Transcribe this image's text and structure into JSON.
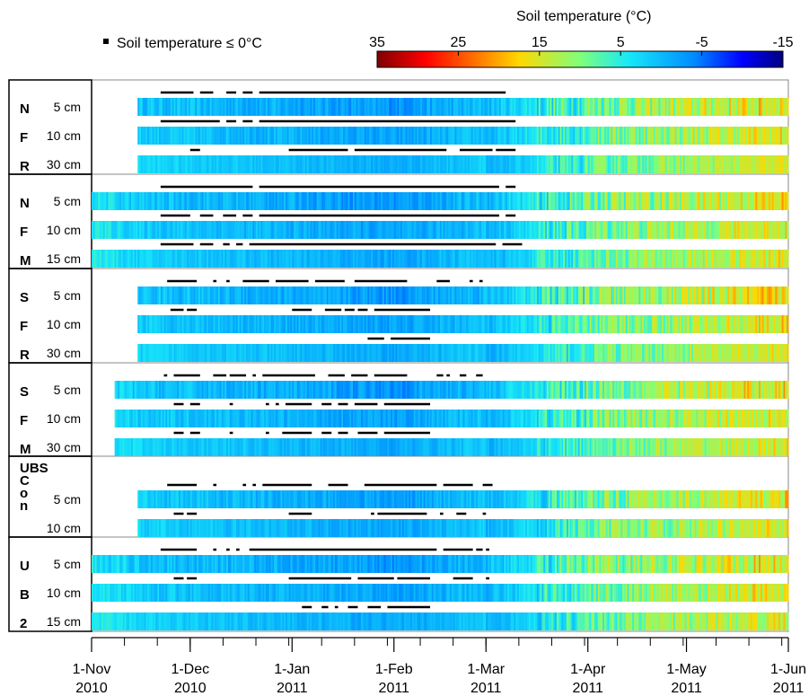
{
  "chart_data": {
    "type": "heatmap",
    "legend": {
      "marker_label": "Soil temperature ≤ 0°C",
      "colorbar_title": "Soil temperature (°C)",
      "colorbar_ticks": [
        "35",
        "25",
        "15",
        "5",
        "-5",
        "-15"
      ],
      "colorbar_range": [
        35,
        -15
      ]
    },
    "x_axis": {
      "ticks": [
        {
          "line1": "1-Nov",
          "line2": "2010",
          "day": 0
        },
        {
          "line1": "1-Dec",
          "line2": "2010",
          "day": 30
        },
        {
          "line1": "1-Jan",
          "line2": "2011",
          "day": 61
        },
        {
          "line1": "1-Feb",
          "line2": "2011",
          "day": 92
        },
        {
          "line1": "1-Mar",
          "line2": "2011",
          "day": 120
        },
        {
          "line1": "1-Apr",
          "line2": "2011",
          "day": 151
        },
        {
          "line1": "1-May",
          "line2": "2011",
          "day": 181
        },
        {
          "line1": "1-Jun",
          "line2": "2011",
          "day": 212
        }
      ],
      "range_days": [
        0,
        212
      ]
    },
    "panels": [
      {
        "name_lines": [
          "N",
          "F",
          "R"
        ],
        "rows": [
          {
            "depth": "5 cm",
            "start": "2010-11-15",
            "tone": 0.0,
            "frozen": [
              [
                "2010-11-22",
                "2010-12-02"
              ],
              [
                "2010-12-04",
                "2010-12-08"
              ],
              [
                "2010-12-12",
                "2010-12-15"
              ],
              [
                "2010-12-17",
                "2010-12-20"
              ],
              [
                "2010-12-22",
                "2011-03-07"
              ]
            ]
          },
          {
            "depth": "10 cm",
            "start": "2010-11-15",
            "tone": 0.3,
            "frozen": [
              [
                "2010-11-22",
                "2010-12-10"
              ],
              [
                "2010-12-12",
                "2010-12-15"
              ],
              [
                "2010-12-17",
                "2010-12-20"
              ],
              [
                "2010-12-22",
                "2011-03-10"
              ]
            ]
          },
          {
            "depth": "30 cm",
            "start": "2010-11-15",
            "tone": 0.8,
            "frozen": [
              [
                "2010-12-01",
                "2010-12-04"
              ],
              [
                "2010-12-31",
                "2011-01-18"
              ],
              [
                "2011-01-20",
                "2011-02-17"
              ],
              [
                "2011-02-21",
                "2011-03-03"
              ],
              [
                "2011-03-04",
                "2011-03-10"
              ]
            ]
          }
        ]
      },
      {
        "name_lines": [
          "N",
          "F",
          "M"
        ],
        "rows": [
          {
            "depth": "5 cm",
            "start": "2010-11-01",
            "tone": 0.0,
            "frozen": [
              [
                "2010-11-22",
                "2010-12-20"
              ],
              [
                "2010-12-22",
                "2011-03-05"
              ],
              [
                "2011-03-07",
                "2011-03-10"
              ]
            ]
          },
          {
            "depth": "10 cm",
            "start": "2010-11-01",
            "tone": 0.3,
            "frozen": [
              [
                "2010-11-22",
                "2010-12-01"
              ],
              [
                "2010-12-04",
                "2010-12-08"
              ],
              [
                "2010-12-11",
                "2010-12-15"
              ],
              [
                "2010-12-17",
                "2010-12-20"
              ],
              [
                "2010-12-22",
                "2011-03-05"
              ],
              [
                "2011-03-07",
                "2011-03-10"
              ]
            ]
          },
          {
            "depth": "15 cm",
            "start": "2010-11-01",
            "tone": 0.5,
            "frozen": [
              [
                "2010-11-22",
                "2010-12-02"
              ],
              [
                "2010-12-04",
                "2010-12-08"
              ],
              [
                "2010-12-11",
                "2010-12-13"
              ],
              [
                "2010-12-15",
                "2010-12-17"
              ],
              [
                "2010-12-19",
                "2011-03-04"
              ],
              [
                "2011-03-06",
                "2011-03-12"
              ]
            ]
          }
        ]
      },
      {
        "name_lines": [
          "S",
          "F",
          "R"
        ],
        "rows": [
          {
            "depth": "5 cm",
            "start": "2010-11-15",
            "tone": 0.0,
            "frozen": [
              [
                "2010-11-24",
                "2010-12-03"
              ],
              [
                "2010-12-08",
                "2010-12-09"
              ],
              [
                "2010-12-12",
                "2010-12-13"
              ],
              [
                "2010-12-17",
                "2010-12-25"
              ],
              [
                "2010-12-27",
                "2011-01-06"
              ],
              [
                "2011-01-08",
                "2011-01-17"
              ],
              [
                "2011-01-20",
                "2011-02-05"
              ],
              [
                "2011-02-14",
                "2011-02-18"
              ],
              [
                "2011-02-24",
                "2011-02-25"
              ],
              [
                "2011-02-27",
                "2011-02-28"
              ]
            ]
          },
          {
            "depth": "10 cm",
            "start": "2010-11-15",
            "tone": 0.3,
            "frozen": [
              [
                "2010-11-25",
                "2010-11-29"
              ],
              [
                "2010-11-30",
                "2010-12-03"
              ],
              [
                "2011-01-01",
                "2011-01-07"
              ],
              [
                "2011-01-11",
                "2011-01-16"
              ],
              [
                "2011-01-17",
                "2011-01-20"
              ],
              [
                "2011-01-21",
                "2011-01-24"
              ],
              [
                "2011-01-26",
                "2011-02-12"
              ]
            ]
          },
          {
            "depth": "30 cm",
            "start": "2010-11-15",
            "tone": 0.7,
            "frozen": [
              [
                "2011-01-24",
                "2011-01-29"
              ],
              [
                "2011-01-31",
                "2011-02-12"
              ]
            ]
          }
        ]
      },
      {
        "name_lines": [
          "S",
          "F",
          "M"
        ],
        "rows": [
          {
            "depth": "5 cm",
            "start": "2010-11-08",
            "tone": 0.0,
            "frozen": [
              [
                "2010-11-23",
                "2010-11-24"
              ],
              [
                "2010-11-26",
                "2010-12-04"
              ],
              [
                "2010-12-08",
                "2010-12-12"
              ],
              [
                "2010-12-13",
                "2010-12-18"
              ],
              [
                "2010-12-20",
                "2010-12-21"
              ],
              [
                "2010-12-23",
                "2011-01-08"
              ],
              [
                "2011-01-12",
                "2011-01-17"
              ],
              [
                "2011-01-19",
                "2011-01-24"
              ],
              [
                "2011-01-26",
                "2011-02-05"
              ],
              [
                "2011-02-14",
                "2011-02-16"
              ],
              [
                "2011-02-17",
                "2011-02-18"
              ],
              [
                "2011-02-21",
                "2011-02-23"
              ],
              [
                "2011-02-26",
                "2011-02-28"
              ]
            ]
          },
          {
            "depth": "10 cm",
            "start": "2010-11-08",
            "tone": 0.3,
            "frozen": [
              [
                "2010-11-26",
                "2010-11-29"
              ],
              [
                "2010-12-01",
                "2010-12-04"
              ],
              [
                "2010-12-13",
                "2010-12-14"
              ],
              [
                "2010-12-24",
                "2010-12-25"
              ],
              [
                "2010-12-27",
                "2010-12-28"
              ],
              [
                "2010-12-30",
                "2011-01-07"
              ],
              [
                "2011-01-10",
                "2011-01-13"
              ],
              [
                "2011-01-15",
                "2011-01-18"
              ],
              [
                "2011-01-20",
                "2011-01-27"
              ],
              [
                "2011-01-29",
                "2011-02-12"
              ]
            ]
          },
          {
            "depth": "30 cm",
            "start": "2010-11-08",
            "tone": 0.6,
            "frozen": [
              [
                "2010-11-26",
                "2010-11-29"
              ],
              [
                "2010-12-01",
                "2010-12-04"
              ],
              [
                "2010-12-13",
                "2010-12-14"
              ],
              [
                "2010-12-24",
                "2010-12-25"
              ],
              [
                "2010-12-29",
                "2011-01-07"
              ],
              [
                "2011-01-10",
                "2011-01-13"
              ],
              [
                "2011-01-15",
                "2011-01-18"
              ],
              [
                "2011-01-21",
                "2011-01-27"
              ],
              [
                "2011-01-29",
                "2011-02-12"
              ]
            ]
          }
        ]
      },
      {
        "name_lines": [
          "UBS",
          "C",
          "o",
          "n"
        ],
        "rows": [
          {
            "depth": "5 cm",
            "start": "2010-11-15",
            "tone": 0.2,
            "frozen": [
              [
                "2010-11-24",
                "2010-12-03"
              ],
              [
                "2010-12-08",
                "2010-12-09"
              ],
              [
                "2010-12-17",
                "2010-12-18"
              ],
              [
                "2010-12-20",
                "2010-12-21"
              ],
              [
                "2010-12-23",
                "2011-01-07"
              ],
              [
                "2011-01-12",
                "2011-01-18"
              ],
              [
                "2011-01-23",
                "2011-02-14"
              ],
              [
                "2011-02-16",
                "2011-02-25"
              ],
              [
                "2011-02-28",
                "2011-03-03"
              ]
            ]
          },
          {
            "depth": "10 cm",
            "start": "2010-11-15",
            "tone": 0.5,
            "frozen": [
              [
                "2010-11-26",
                "2010-11-29"
              ],
              [
                "2010-11-30",
                "2010-12-03"
              ],
              [
                "2010-12-31",
                "2011-01-07"
              ],
              [
                "2011-01-25",
                "2011-01-26"
              ],
              [
                "2011-01-27",
                "2011-02-11"
              ],
              [
                "2011-02-15",
                "2011-02-16"
              ],
              [
                "2011-02-20",
                "2011-02-23"
              ],
              [
                "2011-02-28",
                "2011-03-01"
              ]
            ]
          }
        ]
      },
      {
        "name_lines": [
          "U",
          "B",
          "2"
        ],
        "rows": [
          {
            "depth": "5 cm",
            "start": "2010-11-01",
            "tone": 0.0,
            "frozen": [
              [
                "2010-11-22",
                "2010-12-03"
              ],
              [
                "2010-12-08",
                "2010-12-09"
              ],
              [
                "2010-12-12",
                "2010-12-13"
              ],
              [
                "2010-12-15",
                "2010-12-16"
              ],
              [
                "2010-12-19",
                "2011-02-14"
              ],
              [
                "2011-02-16",
                "2011-02-25"
              ],
              [
                "2011-02-26",
                "2011-02-28"
              ],
              [
                "2011-03-01",
                "2011-03-02"
              ]
            ]
          },
          {
            "depth": "10 cm",
            "start": "2010-11-01",
            "tone": 0.3,
            "frozen": [
              [
                "2010-11-26",
                "2010-11-29"
              ],
              [
                "2010-11-30",
                "2010-12-03"
              ],
              [
                "2010-12-31",
                "2011-01-19"
              ],
              [
                "2011-01-21",
                "2011-02-01"
              ],
              [
                "2011-02-02",
                "2011-02-12"
              ],
              [
                "2011-02-19",
                "2011-02-25"
              ],
              [
                "2011-03-01",
                "2011-03-02"
              ]
            ]
          },
          {
            "depth": "15 cm",
            "start": "2010-11-01",
            "tone": 0.6,
            "frozen": [
              [
                "2011-01-04",
                "2011-01-07"
              ],
              [
                "2011-01-10",
                "2011-01-12"
              ],
              [
                "2011-01-14",
                "2011-01-15"
              ],
              [
                "2011-01-18",
                "2011-01-21"
              ],
              [
                "2011-01-24",
                "2011-01-28"
              ],
              [
                "2011-01-30",
                "2011-02-12"
              ]
            ]
          }
        ]
      }
    ]
  }
}
